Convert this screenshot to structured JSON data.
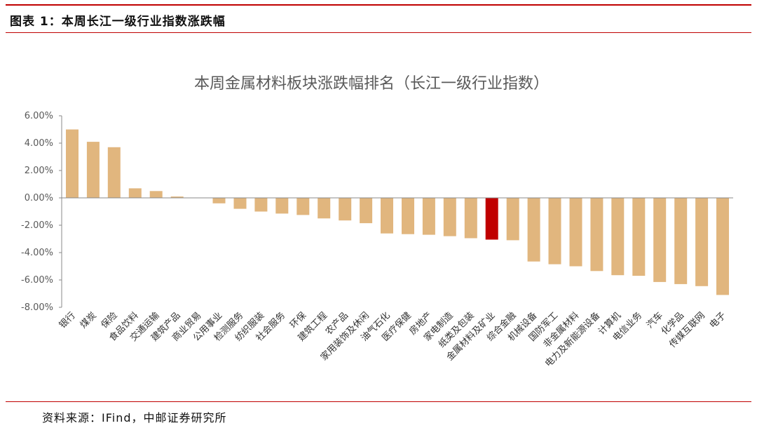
{
  "header": {
    "figure_label": "图表 1：本周长江一级行业指数涨跌幅"
  },
  "footer": {
    "source": "资料来源：IFind，中邮证券研究所"
  },
  "colors": {
    "bar": "#E1B67E",
    "highlight": "#C00000",
    "rule": "#C00000",
    "axis": "#888888"
  },
  "chart_data": {
    "type": "bar",
    "title": "本周金属材料板块涨跌幅排名（长江一级行业指数）",
    "xlabel": "",
    "ylabel": "",
    "ylim": [
      -8,
      6
    ],
    "yticks": [
      6,
      4,
      2,
      0,
      -2,
      -4,
      -6,
      -8
    ],
    "ytick_labels": [
      "6.00%",
      "4.00%",
      "2.00%",
      "0.00%",
      "-2.00%",
      "-4.00%",
      "-6.00%",
      "-8.00%"
    ],
    "highlight_category": "金属材料及矿业",
    "categories": [
      "银行",
      "煤炭",
      "保险",
      "食品饮料",
      "交通运输",
      "建筑产品",
      "商业贸易",
      "公用事业",
      "检测服务",
      "纺织服装",
      "社会服务",
      "环保",
      "建筑工程",
      "农产品",
      "家用装饰及休闲",
      "油气石化",
      "医疗保健",
      "房地产",
      "家电制造",
      "纸类及包装",
      "金属材料及矿业",
      "综合金融",
      "机械设备",
      "国防军工",
      "非金属材料",
      "电力及新能源设备",
      "计算机",
      "电信业务",
      "汽车",
      "化学品",
      "传媒互联网",
      "电子"
    ],
    "values": [
      5.0,
      4.1,
      3.7,
      0.7,
      0.5,
      0.1,
      0.0,
      -0.4,
      -0.8,
      -1.0,
      -1.15,
      -1.25,
      -1.5,
      -1.65,
      -1.85,
      -2.6,
      -2.65,
      -2.7,
      -2.8,
      -2.95,
      -3.05,
      -3.1,
      -4.65,
      -4.85,
      -5.0,
      -5.35,
      -5.65,
      -5.7,
      -6.15,
      -6.3,
      -6.45,
      -7.1
    ]
  }
}
